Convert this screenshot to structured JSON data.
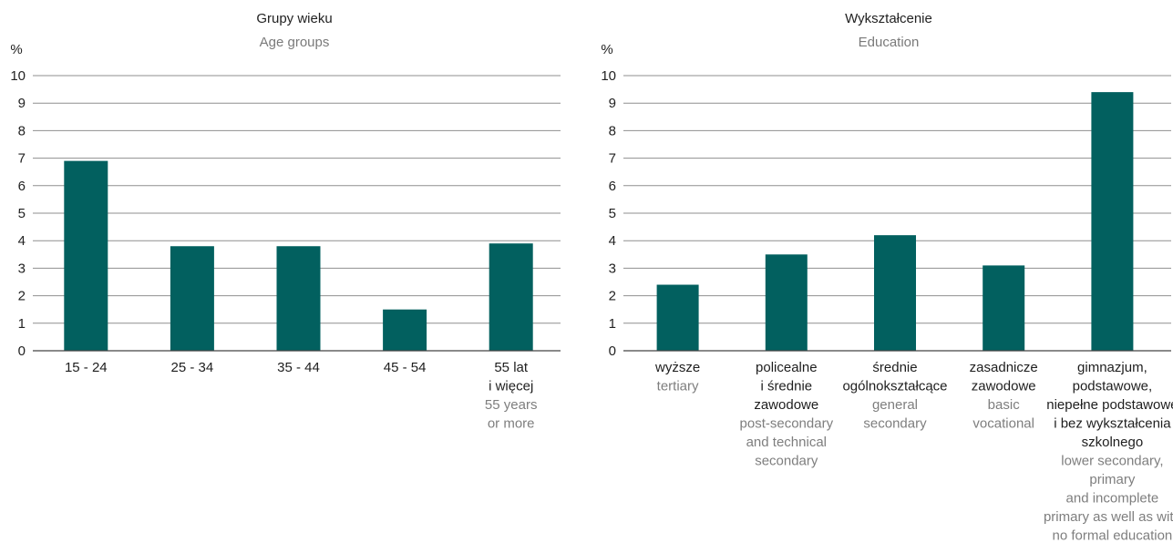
{
  "chart_data": [
    {
      "type": "bar",
      "title": "Grupy wieku",
      "subtitle": "Age groups",
      "ylabel": "%",
      "ylim": [
        0,
        10
      ],
      "yticks": [
        "0",
        "1",
        "2",
        "3",
        "4",
        "5",
        "6",
        "7",
        "8",
        "9",
        "10"
      ],
      "grid": true,
      "bar_color": "#02605f",
      "categories": [
        {
          "pl": [
            "15 - 24"
          ],
          "en": []
        },
        {
          "pl": [
            "25 - 34"
          ],
          "en": []
        },
        {
          "pl": [
            "35 - 44"
          ],
          "en": []
        },
        {
          "pl": [
            "45 - 54"
          ],
          "en": []
        },
        {
          "pl": [
            "55 lat",
            "i więcej"
          ],
          "en": [
            "55 years",
            "or more"
          ]
        }
      ],
      "values": [
        6.9,
        3.8,
        3.8,
        1.5,
        3.9
      ]
    },
    {
      "type": "bar",
      "title": "Wykształcenie",
      "subtitle": "Education",
      "ylabel": "%",
      "ylim": [
        0,
        10
      ],
      "yticks": [
        "0",
        "1",
        "2",
        "3",
        "4",
        "5",
        "6",
        "7",
        "8",
        "9",
        "10"
      ],
      "grid": true,
      "bar_color": "#02605f",
      "categories": [
        {
          "pl": [
            "wyższe"
          ],
          "en": [
            "tertiary"
          ]
        },
        {
          "pl": [
            "policealne",
            "i średnie",
            "zawodowe"
          ],
          "en": [
            "post-secondary",
            "and technical",
            "secondary"
          ]
        },
        {
          "pl": [
            "średnie",
            "ogólnokształcące"
          ],
          "en": [
            "general",
            "secondary"
          ]
        },
        {
          "pl": [
            "zasadnicze",
            "zawodowe"
          ],
          "en": [
            "basic",
            "vocational"
          ]
        },
        {
          "pl": [
            "gimnazjum,",
            "podstawowe,",
            "niepełne podstawowe",
            "i bez wykształcenia",
            "szkolnego"
          ],
          "en": [
            "lower secondary,",
            "primary",
            "and incomplete",
            "primary as well as with",
            "no formal education"
          ]
        }
      ],
      "values": [
        2.4,
        3.5,
        4.2,
        3.1,
        9.4
      ]
    }
  ]
}
